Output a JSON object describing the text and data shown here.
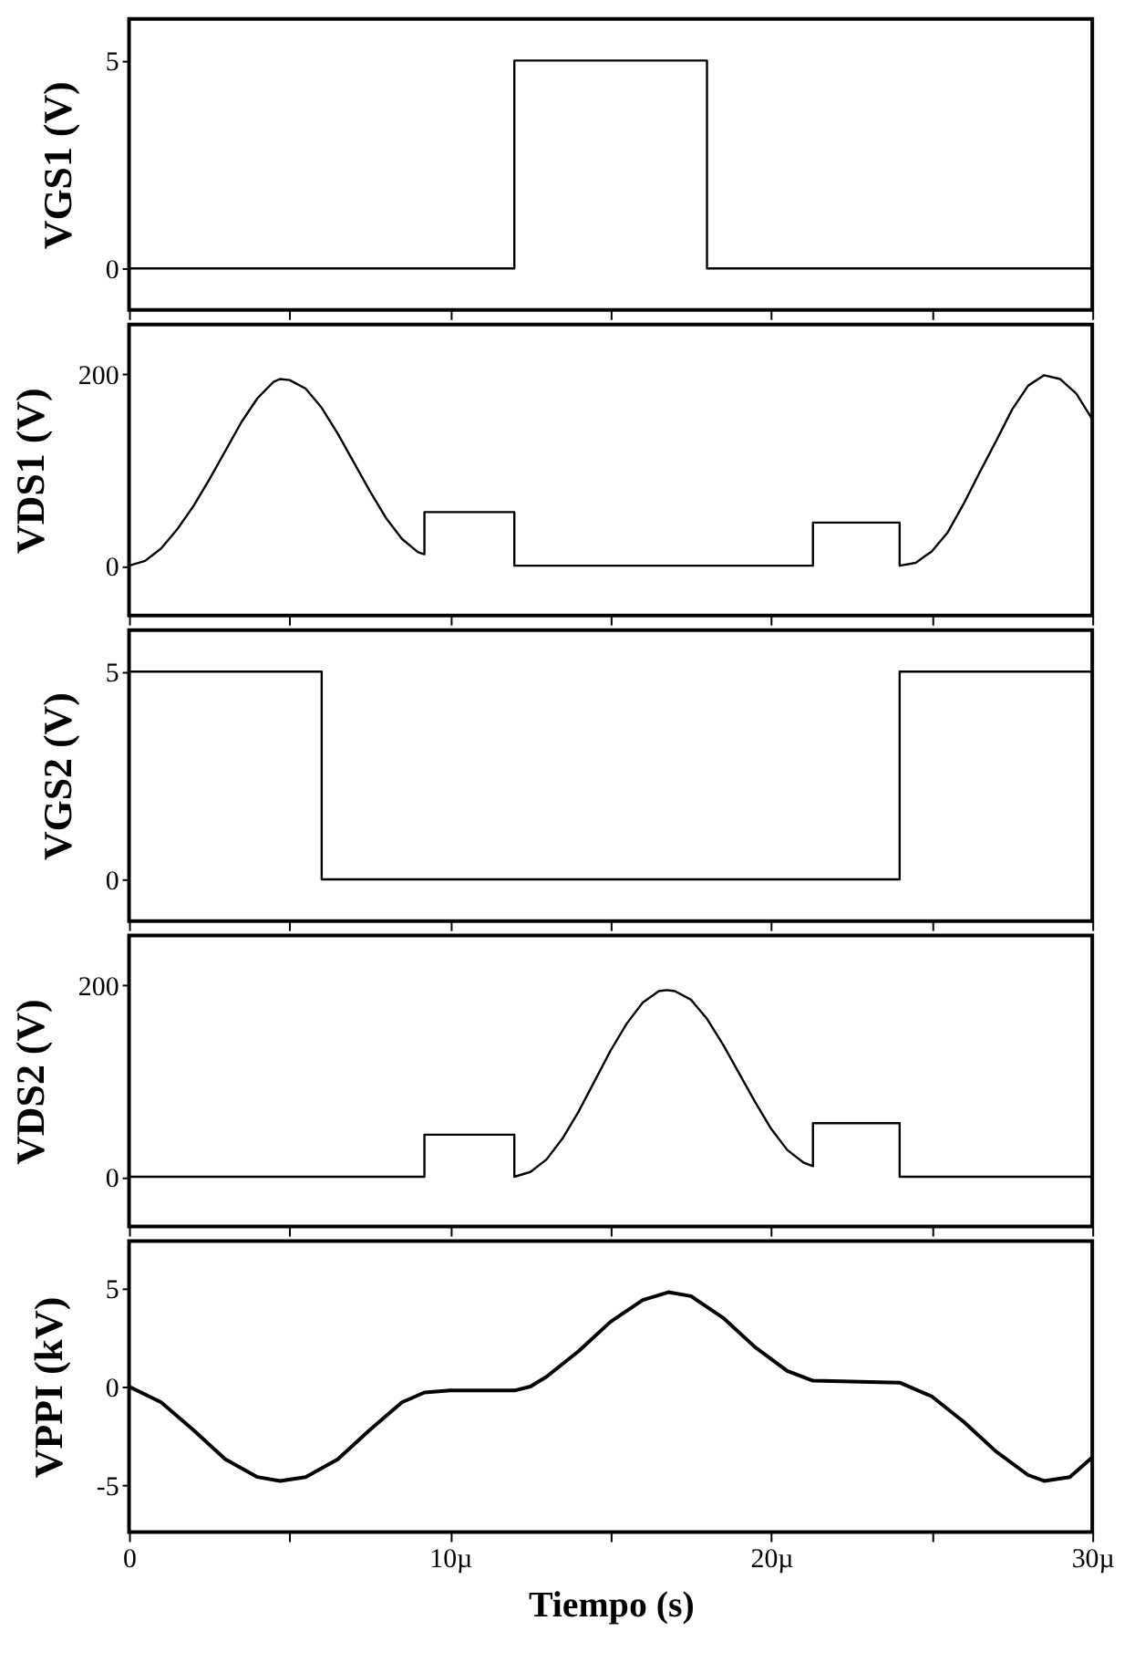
{
  "chart_data": [
    {
      "type": "line",
      "ylabel": "VGS1 (V)",
      "xlim": [
        0,
        30
      ],
      "ylim": [
        -1,
        6
      ],
      "yticks": [
        0,
        5
      ],
      "tick_labels": "y",
      "series": [
        {
          "color": "#000000",
          "x": [
            0,
            12,
            12,
            18,
            18,
            30
          ],
          "values": [
            0,
            0,
            5,
            5,
            0,
            0
          ]
        }
      ]
    },
    {
      "type": "line",
      "ylabel": "VDS1 (V)",
      "xlim": [
        0,
        30
      ],
      "ylim": [
        -52,
        252
      ],
      "yticks": [
        0,
        200
      ],
      "tick_labels": "y",
      "series": [
        {
          "color": "#000000",
          "x": [
            0,
            0.5,
            1,
            1.5,
            2,
            2.5,
            3,
            3.5,
            4,
            4.5,
            4.7,
            5,
            5.5,
            6,
            6.5,
            7,
            7.5,
            8,
            8.5,
            9,
            9.2,
            9.2,
            12,
            12,
            21.3,
            21.3,
            24,
            24,
            24.5,
            25,
            25.5,
            26,
            26.5,
            27,
            27.5,
            28,
            28.5,
            29,
            29.5,
            30
          ],
          "values": [
            0,
            5,
            18,
            38,
            62,
            90,
            120,
            150,
            175,
            192,
            195,
            194,
            185,
            165,
            138,
            108,
            78,
            50,
            28,
            14,
            12,
            56,
            56,
            0,
            0,
            45,
            45,
            0,
            3,
            15,
            35,
            65,
            98,
            130,
            163,
            188,
            199,
            195,
            180,
            153
          ]
        }
      ]
    },
    {
      "type": "line",
      "ylabel": "VGS2 (V)",
      "xlim": [
        0,
        30
      ],
      "ylim": [
        -1,
        6
      ],
      "yticks": [
        0,
        5
      ],
      "tick_labels": "y",
      "series": [
        {
          "color": "#000000",
          "x": [
            0,
            6,
            6,
            24,
            24,
            30
          ],
          "values": [
            5,
            5,
            0,
            0,
            5,
            5
          ]
        }
      ]
    },
    {
      "type": "line",
      "ylabel": "VDS2 (V)",
      "xlim": [
        0,
        30
      ],
      "ylim": [
        -52,
        252
      ],
      "yticks": [
        0,
        200
      ],
      "tick_labels": "y",
      "series": [
        {
          "color": "#000000",
          "x": [
            0,
            9.2,
            9.2,
            12,
            12,
            12.5,
            13,
            13.5,
            14,
            14.5,
            15,
            15.5,
            16,
            16.5,
            16.75,
            17,
            17.5,
            18,
            18.5,
            19,
            19.5,
            20,
            20.5,
            21,
            21.3,
            21.3,
            24,
            24,
            30
          ],
          "values": [
            0,
            0,
            44,
            44,
            0,
            5,
            18,
            40,
            68,
            100,
            132,
            160,
            182,
            194,
            195,
            194,
            185,
            165,
            138,
            108,
            78,
            50,
            28,
            15,
            11,
            56,
            56,
            0,
            0
          ]
        }
      ]
    },
    {
      "type": "line",
      "ylabel": "VPPI (kV)",
      "xlabel": "Tiempo (s)",
      "xlim": [
        0,
        30
      ],
      "ylim": [
        -7.4,
        7.4
      ],
      "yticks": [
        -5,
        0,
        5
      ],
      "xticks": [
        0,
        {
          "value": 5,
          "label": null
        },
        {
          "value": 10,
          "label": "10µ"
        },
        {
          "value": 15,
          "label": null
        },
        {
          "value": 20,
          "label": "20µ"
        },
        {
          "value": 25,
          "label": null
        },
        {
          "value": 30,
          "label": "30µ"
        }
      ],
      "series": [
        {
          "color": "#000000",
          "x": [
            0,
            1,
            2,
            3,
            4,
            4.7,
            5.5,
            6.5,
            7.5,
            8.5,
            9.2,
            10,
            12,
            12.5,
            13,
            14,
            15,
            16,
            16.8,
            17.5,
            18.5,
            19.5,
            20.5,
            21.3,
            24,
            25,
            26,
            27,
            28,
            28.5,
            29.3,
            30
          ],
          "values": [
            0,
            -0.8,
            -2.2,
            -3.7,
            -4.6,
            -4.8,
            -4.6,
            -3.7,
            -2.2,
            -0.8,
            -0.3,
            -0.2,
            -0.2,
            0,
            0.5,
            1.8,
            3.3,
            4.4,
            4.8,
            4.6,
            3.5,
            2,
            0.8,
            0.3,
            0.2,
            -0.5,
            -1.8,
            -3.3,
            -4.5,
            -4.8,
            -4.6,
            -3.6
          ]
        }
      ]
    }
  ]
}
